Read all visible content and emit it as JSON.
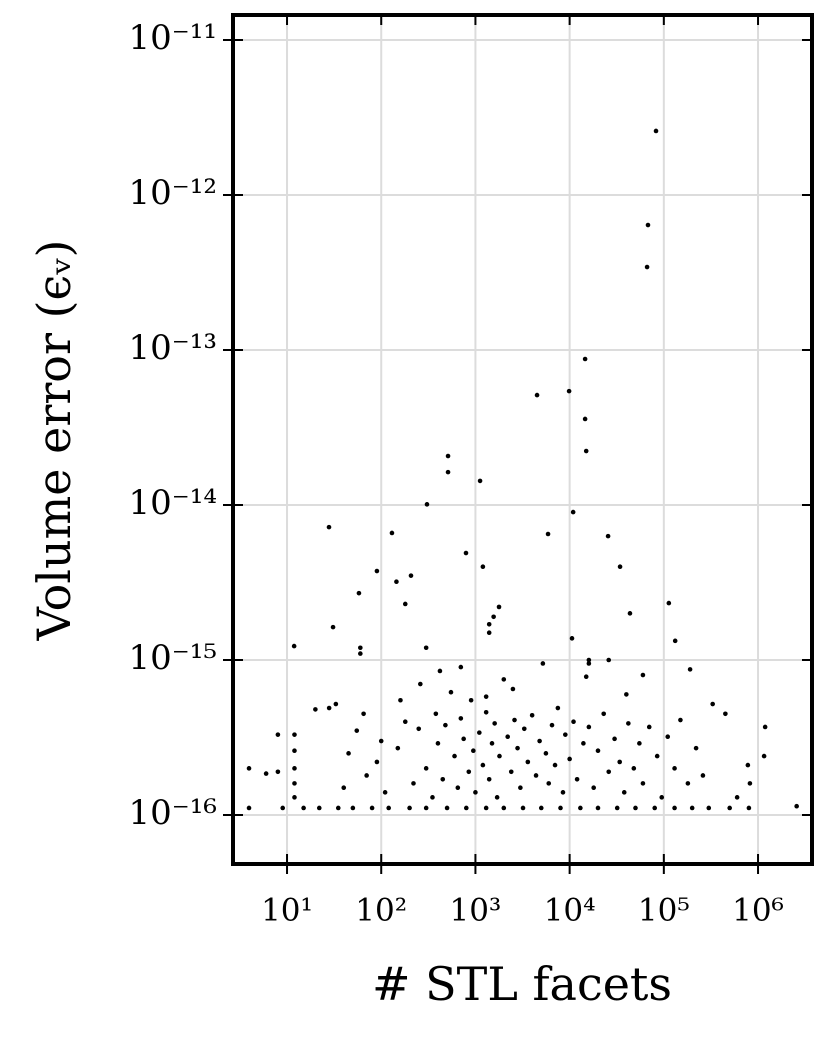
{
  "chart_data": {
    "type": "scatter",
    "x_label": "# STL facets",
    "y_label": "Volume error (ϵᵥ)",
    "xlog": true,
    "ylog": true,
    "grid": true,
    "color": "#000000",
    "xlim": [
      2.67,
      3740000
    ],
    "ylim": [
      4.83e-17,
      1.45e-11
    ],
    "xticks": [
      {
        "value": 10,
        "label": "10¹"
      },
      {
        "value": 100,
        "label": "10²"
      },
      {
        "value": 1000,
        "label": "10³"
      },
      {
        "value": 10000,
        "label": "10⁴"
      },
      {
        "value": 100000,
        "label": "10⁵"
      },
      {
        "value": 1000000,
        "label": "10⁶"
      }
    ],
    "yticks": [
      {
        "value": 1e-16,
        "label": "10⁻¹⁶"
      },
      {
        "value": 1e-15,
        "label": "10⁻¹⁵"
      },
      {
        "value": 1e-14,
        "label": "10⁻¹⁴"
      },
      {
        "value": 1e-13,
        "label": "10⁻¹³"
      },
      {
        "value": 1e-12,
        "label": "10⁻¹²"
      },
      {
        "value": 1e-11,
        "label": "10⁻¹¹"
      }
    ],
    "x": [
      82600,
      67900,
      66400,
      14600,
      9870,
      4510,
      14600,
      15000,
      512,
      512,
      1120,
      306,
      27.9,
      130,
      10900,
      25600,
      5900,
      794,
      90,
      1200,
      34300,
      58,
      30.8,
      11.9,
      60,
      60,
      113000,
      132000,
      190000,
      43700,
      10600,
      16000,
      26000,
      16000,
      145,
      207,
      180,
      1560,
      1780,
      1400,
      1400,
      1190000,
      1160000,
      2570000,
      3.95,
      3.95,
      8.0,
      9,
      15,
      22,
      35,
      50,
      80,
      120,
      200,
      300,
      500,
      800,
      1300,
      2000,
      3200,
      5000,
      8000,
      13000,
      20000,
      32000,
      50000,
      80000,
      130000,
      200000,
      300000,
      500000,
      800000,
      12,
      12,
      12,
      12,
      12,
      8,
      6,
      20,
      28,
      33,
      40,
      45,
      55,
      65,
      70,
      90,
      100,
      110,
      150,
      160,
      180,
      220,
      250,
      260,
      300,
      350,
      380,
      400,
      420,
      450,
      480,
      550,
      600,
      650,
      700,
      750,
      850,
      900,
      950,
      1000,
      1100,
      1200,
      1300,
      1400,
      1500,
      1600,
      1700,
      1800,
      2000,
      2200,
      2400,
      2600,
      2800,
      3000,
      3300,
      3600,
      4000,
      4400,
      4800,
      5200,
      5600,
      6000,
      6500,
      7000,
      7500,
      8500,
      9000,
      10000,
      11000,
      12000,
      14000,
      16000,
      18000,
      20000,
      23000,
      26000,
      30000,
      34000,
      38000,
      42000,
      48000,
      55000,
      60000,
      70000,
      85000,
      95000,
      110000,
      130000,
      150000,
      180000,
      220000,
      260000,
      330000,
      450000,
      600000,
      780000,
      820000,
      1300,
      2500,
      700,
      300,
      15000,
      40000,
      60000
    ],
    "values": [
      2.59e-12,
      6.4e-13,
      3.43e-13,
      8.75e-14,
      5.43e-14,
      5.12e-14,
      3.59e-14,
      2.23e-14,
      2.07e-14,
      1.63e-14,
      1.43e-14,
      1.01e-14,
      7.2e-15,
      6.6e-15,
      9e-15,
      6.3e-15,
      6.5e-15,
      4.9e-15,
      3.75e-15,
      4e-15,
      4e-15,
      2.7e-15,
      1.63e-15,
      1.23e-15,
      1.2e-15,
      1.1e-15,
      2.33e-15,
      1.33e-15,
      8.7e-16,
      2e-15,
      1.38e-15,
      1e-15,
      1e-15,
      9.5e-16,
      3.2e-15,
      3.5e-15,
      2.3e-15,
      1.9e-15,
      2.2e-15,
      1.7e-15,
      1.5e-15,
      3.7e-16,
      2.4e-16,
      1.14e-16,
      2e-16,
      1.11e-16,
      3.3e-16,
      1.11e-16,
      1.11e-16,
      1.11e-16,
      1.11e-16,
      1.11e-16,
      1.11e-16,
      1.11e-16,
      1.11e-16,
      1.11e-16,
      1.11e-16,
      1.11e-16,
      1.11e-16,
      1.11e-16,
      1.11e-16,
      1.11e-16,
      1.11e-16,
      1.11e-16,
      1.11e-16,
      1.11e-16,
      1.11e-16,
      1.11e-16,
      1.11e-16,
      1.11e-16,
      1.11e-16,
      1.11e-16,
      1.11e-16,
      1.3e-16,
      1.6e-16,
      2e-16,
      2.6e-16,
      3.3e-16,
      1.9e-16,
      1.85e-16,
      4.8e-16,
      4.9e-16,
      5.2e-16,
      1.5e-16,
      2.5e-16,
      3.5e-16,
      4.5e-16,
      1.8e-16,
      2.2e-16,
      3e-16,
      1.4e-16,
      2.7e-16,
      5.5e-16,
      4e-16,
      1.6e-16,
      3.6e-16,
      7e-16,
      2e-16,
      1.3e-16,
      4.5e-16,
      2.9e-16,
      8.5e-16,
      1.7e-16,
      3.8e-16,
      6.2e-16,
      2.4e-16,
      1.5e-16,
      4.2e-16,
      3.1e-16,
      1.9e-16,
      5.5e-16,
      2.6e-16,
      1.4e-16,
      3.4e-16,
      2.1e-16,
      4.6e-16,
      1.7e-16,
      2.9e-16,
      3.9e-16,
      1.3e-16,
      2.4e-16,
      7.5e-16,
      3.2e-16,
      1.9e-16,
      4.1e-16,
      2.7e-16,
      1.5e-16,
      3.6e-16,
      2.2e-16,
      4.4e-16,
      1.8e-16,
      3e-16,
      9.5e-16,
      2.5e-16,
      1.6e-16,
      3.8e-16,
      2.1e-16,
      4.9e-16,
      1.4e-16,
      3.3e-16,
      2.3e-16,
      4e-16,
      1.7e-16,
      2.9e-16,
      3.7e-16,
      1.5e-16,
      2.6e-16,
      4.5e-16,
      1.9e-16,
      3.1e-16,
      2.2e-16,
      1.4e-16,
      3.9e-16,
      2e-16,
      2.9e-16,
      1.6e-16,
      3.7e-16,
      2.4e-16,
      1.3e-16,
      3.2e-16,
      2e-16,
      4.1e-16,
      1.6e-16,
      2.7e-16,
      1.8e-16,
      5.2e-16,
      4.5e-16,
      1.3e-16,
      2.1e-16,
      1.6e-16,
      5.8e-16,
      6.5e-16,
      9e-16,
      1.2e-15,
      7.8e-16,
      6e-16,
      8e-16
    ]
  }
}
